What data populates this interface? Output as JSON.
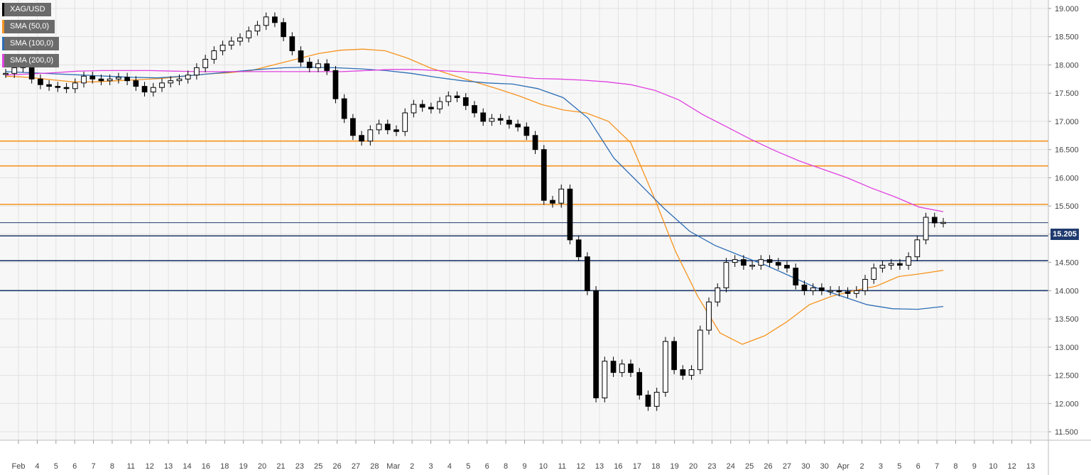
{
  "legend": {
    "items": [
      {
        "label": "XAG/USD",
        "color": "#000000"
      },
      {
        "label": "SMA (50,0)",
        "color": "#f7931e"
      },
      {
        "label": "SMA (100,0)",
        "color": "#2d6db5"
      },
      {
        "label": "SMA (200,0)",
        "color": "#e040e0"
      }
    ]
  },
  "price_badge": "15.205",
  "chart_data": {
    "type": "line",
    "title": "",
    "xlabel": "",
    "ylabel": "",
    "ylim": [
      11.35,
      19.15
    ],
    "y_ticks": [
      "19.000",
      "18.500",
      "18.000",
      "17.500",
      "17.000",
      "16.500",
      "16.000",
      "15.500",
      "15.000",
      "14.500",
      "14.000",
      "13.500",
      "13.000",
      "12.500",
      "12.000",
      "11.500"
    ],
    "x_ticks": [
      "Feb",
      "4",
      "5",
      "6",
      "7",
      "8",
      "11",
      "12",
      "13",
      "14",
      "16",
      "18",
      "19",
      "20",
      "21",
      "23",
      "25",
      "26",
      "27",
      "28",
      "Mar",
      "2",
      "3",
      "4",
      "5",
      "6",
      "8",
      "9",
      "10",
      "11",
      "12",
      "13",
      "16",
      "17",
      "18",
      "19",
      "20",
      "23",
      "24",
      "25",
      "26",
      "27",
      "30",
      "30",
      "Apr",
      "2",
      "3",
      "5",
      "6",
      "7",
      "8",
      "9",
      "10",
      "12",
      "13"
    ],
    "grid": true,
    "horizontal_levels": [
      {
        "value": 16.65,
        "color": "#f7931e"
      },
      {
        "value": 16.21,
        "color": "#f7931e"
      },
      {
        "value": 15.53,
        "color": "#f7931e"
      },
      {
        "value": 15.205,
        "color": "#1f3a6e"
      },
      {
        "value": 14.97,
        "color": "#1f3a6e"
      },
      {
        "value": 14.53,
        "color": "#1f3a6e"
      },
      {
        "value": 14.0,
        "color": "#1f3a6e"
      }
    ],
    "series": [
      {
        "name": "XAG/USD",
        "color": "#000000",
        "values": [
          17.85,
          17.95,
          18.05,
          17.75,
          17.65,
          17.62,
          17.6,
          17.58,
          17.68,
          17.8,
          17.75,
          17.72,
          17.75,
          17.78,
          17.72,
          17.62,
          17.52,
          17.6,
          17.68,
          17.72,
          17.75,
          17.82,
          17.95,
          18.1,
          18.25,
          18.35,
          18.42,
          18.48,
          18.6,
          18.7,
          18.85,
          18.75,
          18.5,
          18.25,
          18.05,
          17.95,
          18.02,
          17.9,
          17.4,
          17.05,
          16.75,
          16.65,
          16.85,
          16.95,
          16.85,
          16.82,
          17.15,
          17.3,
          17.25,
          17.22,
          17.35,
          17.45,
          17.42,
          17.28,
          17.15,
          17.0,
          17.05,
          17.02,
          16.95,
          16.9,
          16.75,
          16.5,
          15.6,
          15.55,
          15.8,
          14.9,
          14.6,
          14.0,
          12.1,
          12.75,
          12.55,
          12.7,
          12.55,
          12.15,
          11.95,
          12.2,
          13.1,
          12.6,
          12.5,
          12.6,
          13.3,
          13.8,
          14.05,
          14.5,
          14.55,
          14.45,
          14.45,
          14.55,
          14.5,
          14.45,
          14.4,
          14.1,
          14.0,
          14.05,
          14.0,
          14.0,
          13.98,
          13.95,
          14.0,
          14.2,
          14.4,
          14.45,
          14.48,
          14.45,
          14.6,
          14.9,
          15.3,
          15.2,
          15.21
        ]
      },
      {
        "name": "SMA (50,0)",
        "color": "#f7931e",
        "values": [
          17.8,
          17.78,
          17.74,
          17.7,
          17.7,
          17.72,
          17.74,
          17.76,
          17.8,
          17.84,
          17.86,
          17.9,
          18.0,
          18.1,
          18.2,
          18.26,
          18.28,
          18.25,
          18.12,
          17.95,
          17.82,
          17.7,
          17.58,
          17.45,
          17.3,
          17.2,
          17.15,
          17.0,
          16.62,
          15.7,
          14.7,
          13.9,
          13.25,
          13.05,
          13.2,
          13.45,
          13.75,
          13.9,
          14.0,
          14.08,
          14.25,
          14.3,
          14.36
        ]
      },
      {
        "name": "SMA (100,0)",
        "color": "#2d6db5",
        "values": [
          17.88,
          17.86,
          17.84,
          17.82,
          17.8,
          17.78,
          17.77,
          17.8,
          17.84,
          17.88,
          17.92,
          17.95,
          17.96,
          17.95,
          17.93,
          17.9,
          17.85,
          17.78,
          17.72,
          17.68,
          17.66,
          17.58,
          17.42,
          17.05,
          16.35,
          15.9,
          15.45,
          15.05,
          14.8,
          14.62,
          14.45,
          14.25,
          14.05,
          13.9,
          13.75,
          13.68,
          13.67,
          13.72
        ]
      },
      {
        "name": "SMA (200,0)",
        "color": "#e040e0",
        "values": [
          17.82,
          17.84,
          17.86,
          17.89,
          17.9,
          17.9,
          17.9,
          17.89,
          17.88,
          17.88,
          17.88,
          17.88,
          17.88,
          17.88,
          17.88,
          17.9,
          17.92,
          17.92,
          17.9,
          17.88,
          17.85,
          17.8,
          17.76,
          17.75,
          17.73,
          17.7,
          17.65,
          17.55,
          17.38,
          17.12,
          16.9,
          16.68,
          16.48,
          16.3,
          16.15,
          16.0,
          15.82,
          15.66,
          15.48,
          15.4
        ]
      }
    ]
  }
}
